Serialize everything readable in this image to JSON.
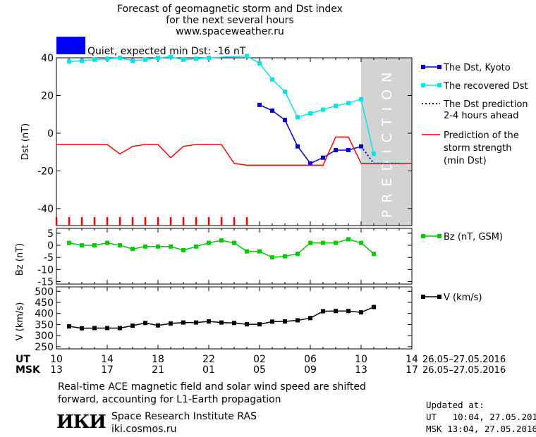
{
  "header": {
    "title_line1": "Forecast of geomagnetic storm and Dst index",
    "title_line2": "for the next several hours",
    "site": "www.spaceweather.ru",
    "status_color": "#0000ff",
    "status_text": "Quiet, expected min Dst: -16 nT"
  },
  "legend": {
    "dst_kyoto": "The Dst, Kyoto",
    "recovered": "The recovered Dst",
    "prediction_l1": "The Dst prediction",
    "prediction_l2": "2-4 hours ahead",
    "strength_l1": "Prediction of the",
    "strength_l2": "storm strength",
    "strength_l3": "(min Dst)",
    "bz": "Bz (nT, GSM)",
    "v": "V (km/s)"
  },
  "prediction_label": "PREDICTION",
  "time_axis": {
    "ut_label": "UT",
    "msk_label": "MSK",
    "ut_ticks": [
      "10",
      "14",
      "18",
      "22",
      "02",
      "06",
      "10",
      "14"
    ],
    "msk_ticks": [
      "13",
      "17",
      "21",
      "01",
      "05",
      "09",
      "13",
      "17"
    ],
    "date_range_ut": "26.05–27.05.2016",
    "date_range_msk": "26.05–27.05.2016"
  },
  "chart_data": [
    {
      "type": "line",
      "ylabel": "Dst (nT)",
      "ylim": [
        -49,
        40
      ],
      "yticks": [
        40,
        20,
        0,
        -20,
        -40
      ],
      "x_hours_start": 10,
      "x_hours_end": 38,
      "prediction_start": 34,
      "series": [
        {
          "name": "The Dst, Kyoto",
          "color": "#0000cc",
          "marker": "square",
          "x": [
            26,
            27,
            28,
            29,
            30,
            31,
            32,
            33,
            34
          ],
          "y": [
            15,
            12,
            7,
            -7,
            -16,
            -13,
            -9,
            -9,
            -7
          ]
        },
        {
          "name": "The recovered Dst",
          "color": "#00e5e5",
          "marker": "square",
          "x": [
            11,
            12,
            13,
            14,
            15,
            16,
            17,
            18,
            19,
            20,
            21,
            22,
            25,
            26,
            27,
            28,
            29,
            30,
            31,
            32,
            33,
            34,
            35
          ],
          "y": [
            38,
            38.5,
            39,
            39.5,
            40,
            38.5,
            39,
            40,
            40.5,
            39,
            39.5,
            40,
            41,
            37,
            28.5,
            22,
            8.5,
            10.5,
            12.5,
            14.5,
            16,
            18,
            -11
          ]
        },
        {
          "name": "The Dst prediction 2-4 hours ahead",
          "color": "#0000cc",
          "dash": true,
          "x": [
            34,
            35,
            36,
            37
          ],
          "y": [
            -7,
            -16,
            -16,
            -16
          ]
        },
        {
          "name": "Prediction of the storm strength (min Dst)",
          "color": "#ff0000",
          "x": [
            10,
            14,
            15,
            16,
            17,
            18,
            19,
            20,
            21,
            23,
            24,
            25,
            30,
            31,
            32,
            33,
            34,
            38
          ],
          "y": [
            -6,
            -6,
            -11,
            -7,
            -6,
            -6,
            -13,
            -7,
            -6,
            -6,
            -16,
            -17,
            -17,
            -17,
            -2,
            -2,
            -16,
            -16
          ]
        }
      ],
      "storm_marks_x": [
        10,
        11,
        12,
        13,
        14,
        15,
        16,
        17,
        18,
        19,
        20,
        21,
        22,
        23,
        24,
        25
      ]
    },
    {
      "type": "line",
      "ylabel": "Bz (nT)",
      "ylim": [
        -16,
        7
      ],
      "yticks": [
        5,
        0,
        -5,
        -10,
        -15
      ],
      "series": [
        {
          "name": "Bz (nT, GSM)",
          "color": "#00cc00",
          "marker": "square",
          "x": [
            11,
            12,
            13,
            14,
            15,
            16,
            17,
            18,
            19,
            20,
            21,
            22,
            23,
            24,
            25,
            26,
            27,
            28,
            29,
            30,
            31,
            32,
            33,
            34,
            35
          ],
          "y": [
            1,
            0,
            0,
            1,
            0,
            -1.5,
            -0.5,
            -0.5,
            -0.5,
            -2,
            -0.5,
            1,
            2,
            1,
            -2.5,
            -2.5,
            -5,
            -4.5,
            -3.5,
            1,
            1,
            1,
            2.5,
            1,
            -3.5
          ]
        }
      ]
    },
    {
      "type": "line",
      "ylabel": "V (km/s)",
      "ylim": [
        240,
        520
      ],
      "yticks": [
        500,
        450,
        400,
        350,
        300,
        250
      ],
      "series": [
        {
          "name": "V (km/s)",
          "color": "#000000",
          "marker": "square",
          "x": [
            11,
            12,
            13,
            14,
            15,
            16,
            17,
            18,
            19,
            20,
            21,
            22,
            23,
            24,
            25,
            26,
            27,
            28,
            29,
            30,
            31,
            32,
            33,
            34,
            35
          ],
          "y": [
            342,
            333,
            334,
            334,
            334,
            345,
            357,
            346,
            355,
            359,
            359,
            364,
            359,
            357,
            351,
            351,
            363,
            364,
            369,
            379,
            410,
            411,
            411,
            405,
            429
          ]
        }
      ]
    }
  ],
  "footer": {
    "note_l1": "Real-time ACE magnetic field and solar wind speed are shifted",
    "note_l2": "forward, accounting for L1-Earth propagation",
    "logo": "ИКИ",
    "institute": "Space Research Institute RAS",
    "institute_url": "iki.cosmos.ru",
    "updated_label": "Updated at:",
    "updated_ut": "UT   10:04, 27.05.2016",
    "updated_msk": "MSK 13:04, 27.05.2016"
  }
}
